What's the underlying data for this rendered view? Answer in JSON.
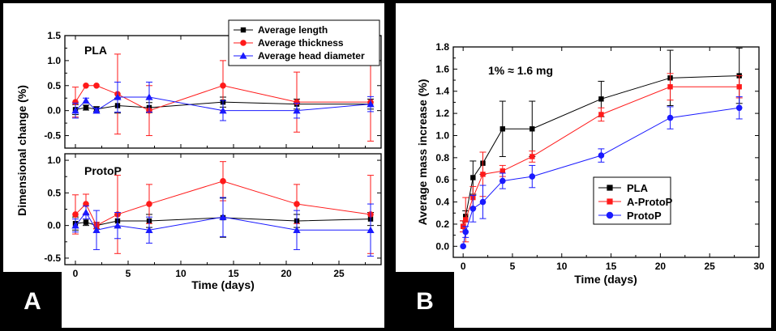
{
  "colors": {
    "black": "#000000",
    "red": "#ff1a1a",
    "blue": "#1a1aff"
  },
  "panel_a": {
    "label": "A",
    "subplots": [
      {
        "title": "PLA"
      },
      {
        "title": "ProtoP"
      }
    ],
    "legend": [
      "Average length",
      "Average thickness",
      "Average head diameter"
    ]
  },
  "panel_b": {
    "label": "B",
    "annotation": "1% ≈ 1.6 mg",
    "legend": [
      "PLA",
      "A-ProtoP",
      "ProtoP"
    ]
  },
  "chart_data": [
    {
      "type": "line",
      "panel": "A",
      "title": "PLA",
      "xlabel": "Time (days)",
      "ylabel": "Dimensional change (%)",
      "xlim": [
        -1,
        29
      ],
      "ylim": [
        -0.75,
        1.5
      ],
      "xticks": [
        0,
        5,
        10,
        15,
        20,
        25
      ],
      "yticks": [
        -0.5,
        0.0,
        0.5,
        1.0,
        1.5
      ],
      "ytick_labels": [
        "-0.5",
        "0.0",
        "0.5",
        "1.0",
        "1.5"
      ],
      "legend_position": "top-right",
      "series": [
        {
          "name": "Average length",
          "color": "#000000",
          "marker": "square",
          "x": [
            0,
            1,
            2,
            4,
            7,
            14,
            21,
            28
          ],
          "y": [
            0.02,
            0.06,
            0.03,
            0.1,
            0.06,
            0.17,
            0.13,
            0.13
          ],
          "err": [
            0.1,
            0.05,
            0.05,
            0.15,
            0.1,
            0.1,
            0.1,
            0.1
          ]
        },
        {
          "name": "Average thickness",
          "color": "#ff1a1a",
          "marker": "circle",
          "x": [
            0,
            1,
            2,
            4,
            7,
            14,
            21,
            28
          ],
          "y": [
            0.17,
            0.5,
            0.5,
            0.33,
            0.0,
            0.5,
            0.17,
            0.17
          ],
          "err": [
            0.3,
            0.0,
            0.0,
            0.8,
            0.5,
            0.5,
            0.6,
            0.78
          ]
        },
        {
          "name": "Average head diameter",
          "color": "#1a1aff",
          "marker": "triangle",
          "x": [
            0,
            1,
            2,
            4,
            7,
            14,
            21,
            28
          ],
          "y": [
            0.0,
            0.2,
            0.0,
            0.27,
            0.27,
            0.0,
            0.0,
            0.13
          ],
          "err": [
            0.15,
            0.05,
            0.05,
            0.3,
            0.3,
            0.2,
            0.15,
            0.15
          ]
        }
      ]
    },
    {
      "type": "line",
      "panel": "A",
      "title": "ProtoP",
      "xlabel": "Time (days)",
      "ylabel": "Dimensional change (%)",
      "xlim": [
        -1,
        29
      ],
      "ylim": [
        -0.6,
        1.1
      ],
      "xticks": [
        0,
        5,
        10,
        15,
        20,
        25
      ],
      "yticks": [
        -0.5,
        0.0,
        0.5,
        1.0
      ],
      "ytick_labels": [
        "-0.5",
        "0.0",
        "0.5",
        "1.0"
      ],
      "series": [
        {
          "name": "Average length",
          "color": "#000000",
          "marker": "square",
          "x": [
            0,
            1,
            2,
            4,
            7,
            14,
            21,
            28
          ],
          "y": [
            0.03,
            0.05,
            0.0,
            0.07,
            0.07,
            0.12,
            0.07,
            0.1
          ],
          "err": [
            0.1,
            0.05,
            0.05,
            0.1,
            0.1,
            0.3,
            0.1,
            0.1
          ]
        },
        {
          "name": "Average thickness",
          "color": "#ff1a1a",
          "marker": "circle",
          "x": [
            0,
            1,
            2,
            4,
            7,
            14,
            21,
            28
          ],
          "y": [
            0.17,
            0.33,
            0.0,
            0.17,
            0.33,
            0.68,
            0.33,
            0.17
          ],
          "err": [
            0.3,
            0.15,
            0.05,
            0.6,
            0.3,
            0.3,
            0.3,
            0.6
          ]
        },
        {
          "name": "Average head diameter",
          "color": "#1a1aff",
          "marker": "triangle",
          "x": [
            0,
            1,
            2,
            4,
            7,
            14,
            21,
            28
          ],
          "y": [
            0.0,
            0.2,
            -0.07,
            0.0,
            -0.07,
            0.13,
            -0.07,
            -0.07
          ],
          "err": [
            0.1,
            0.1,
            0.3,
            0.2,
            0.2,
            0.3,
            0.3,
            0.4
          ]
        }
      ]
    },
    {
      "type": "line",
      "panel": "B",
      "title": "",
      "xlabel": "Time (days)",
      "ylabel": "Average mass increase (%)",
      "xlim": [
        -1,
        30
      ],
      "ylim": [
        -0.1,
        1.8
      ],
      "xticks": [
        0,
        5,
        10,
        15,
        20,
        25,
        30
      ],
      "yticks": [
        0.0,
        0.2,
        0.4,
        0.6,
        0.8,
        1.0,
        1.2,
        1.4,
        1.6,
        1.8
      ],
      "ytick_labels": [
        "0.0",
        "0.2",
        "0.4",
        "0.6",
        "0.8",
        "1.0",
        "1.2",
        "1.4",
        "1.6",
        "1.8"
      ],
      "legend_position": "bottom-right",
      "series": [
        {
          "name": "PLA",
          "color": "#000000",
          "marker": "square",
          "x": [
            0,
            0.25,
            1,
            2,
            4,
            7,
            14,
            21,
            28
          ],
          "y": [
            0.18,
            0.27,
            0.62,
            0.75,
            1.06,
            1.06,
            1.33,
            1.52,
            1.54
          ],
          "err": [
            0.05,
            0.05,
            0.15,
            0.1,
            0.25,
            0.25,
            0.16,
            0.25,
            0.25
          ]
        },
        {
          "name": "A-ProtoP",
          "color": "#ff1a1a",
          "marker": "square",
          "x": [
            0,
            0.25,
            1,
            2,
            4,
            7,
            14,
            21,
            28
          ],
          "y": [
            0.18,
            0.24,
            0.44,
            0.65,
            0.68,
            0.81,
            1.19,
            1.44,
            1.44
          ],
          "err": [
            0.05,
            0.2,
            0.1,
            0.2,
            0.05,
            0.05,
            0.06,
            0.12,
            0.1
          ]
        },
        {
          "name": "ProtoP",
          "color": "#1a1aff",
          "marker": "circle",
          "x": [
            0,
            0.25,
            1,
            2,
            4,
            7,
            14,
            21,
            28
          ],
          "y": [
            0.0,
            0.13,
            0.34,
            0.4,
            0.59,
            0.63,
            0.82,
            1.16,
            1.25
          ],
          "err": [
            0.0,
            0.05,
            0.12,
            0.15,
            0.07,
            0.1,
            0.06,
            0.1,
            0.1
          ]
        }
      ]
    }
  ]
}
